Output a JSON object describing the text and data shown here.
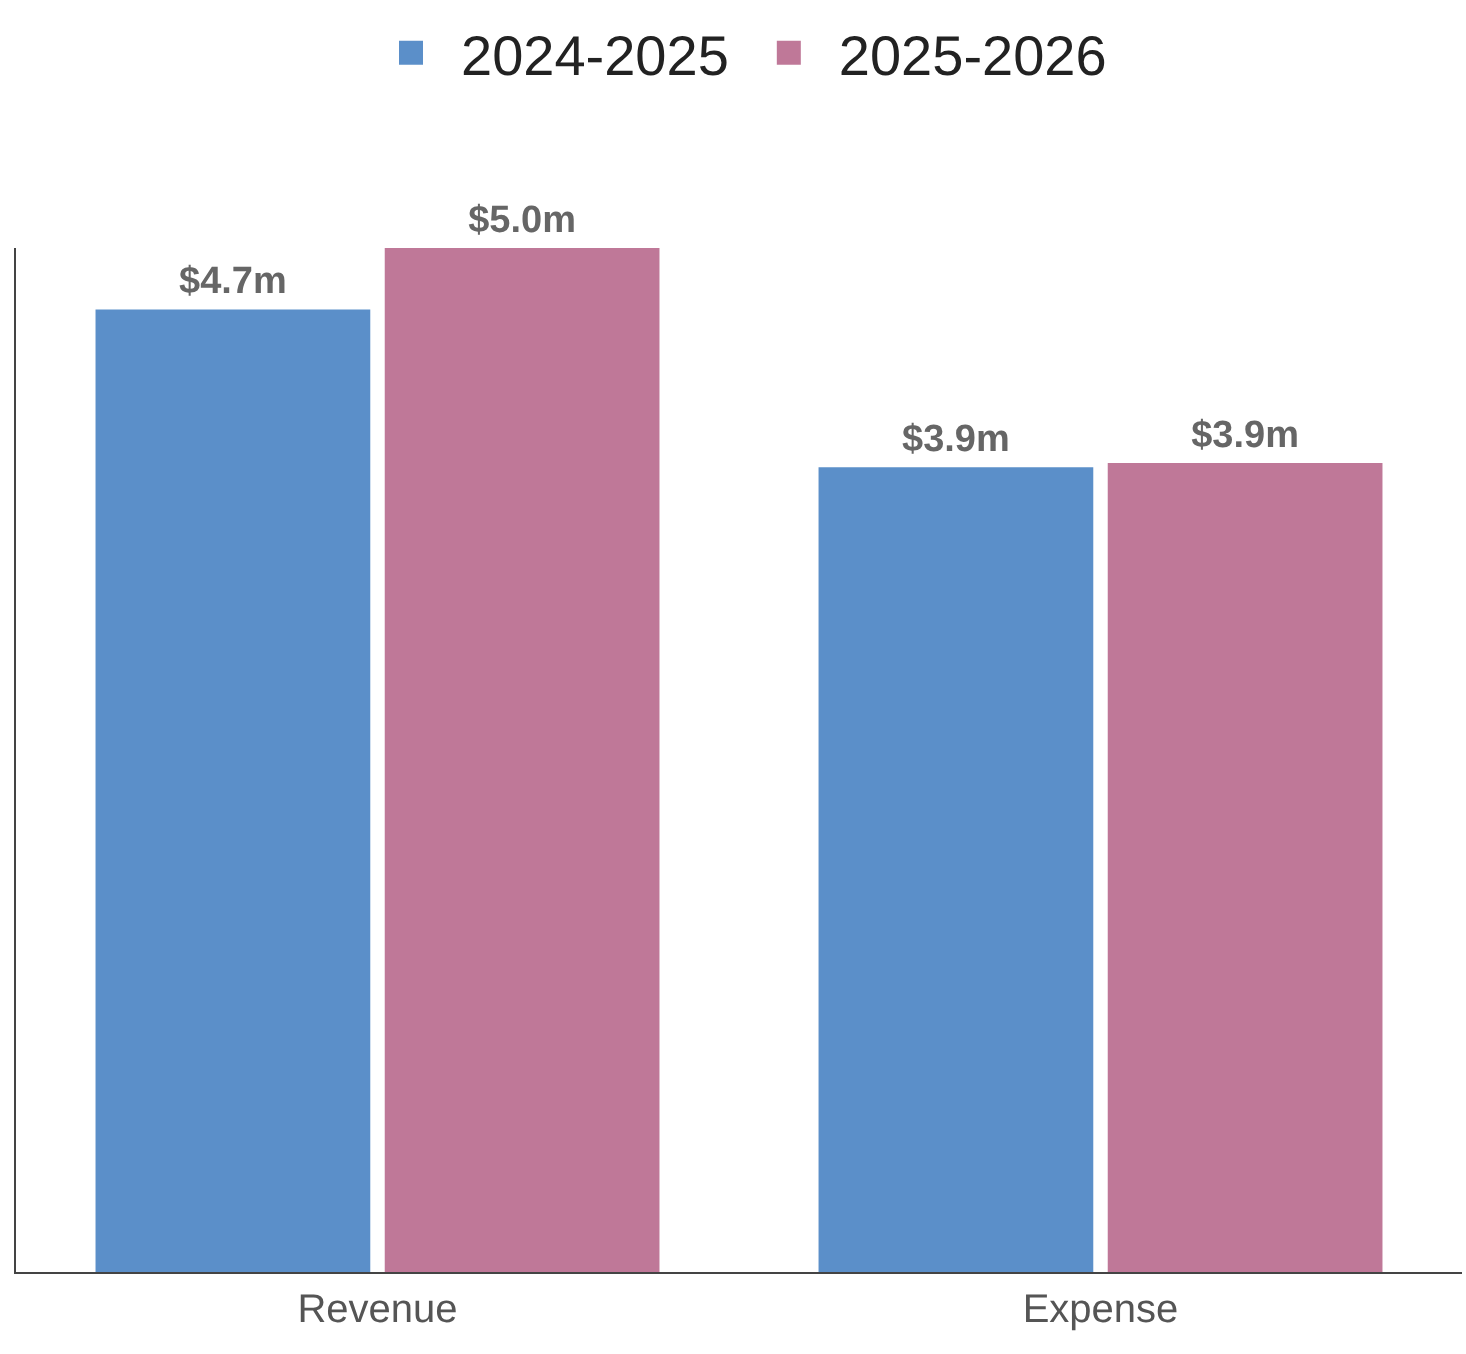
{
  "chart_data": {
    "type": "bar",
    "categories": [
      "Revenue",
      "Expense"
    ],
    "series": [
      {
        "name": "2024-2025",
        "color": "#5b8fc9",
        "values": [
          4.7,
          3.93
        ],
        "value_labels": [
          "$4.7m",
          "$3.9m"
        ]
      },
      {
        "name": "2025-2026",
        "color": "#bf7898",
        "values": [
          5.0,
          3.95
        ],
        "value_labels": [
          "$5.0m",
          "$3.9m"
        ]
      }
    ],
    "ylim": [
      0,
      5.0
    ],
    "tick_labels": "x",
    "grid": false,
    "legend": "top"
  }
}
